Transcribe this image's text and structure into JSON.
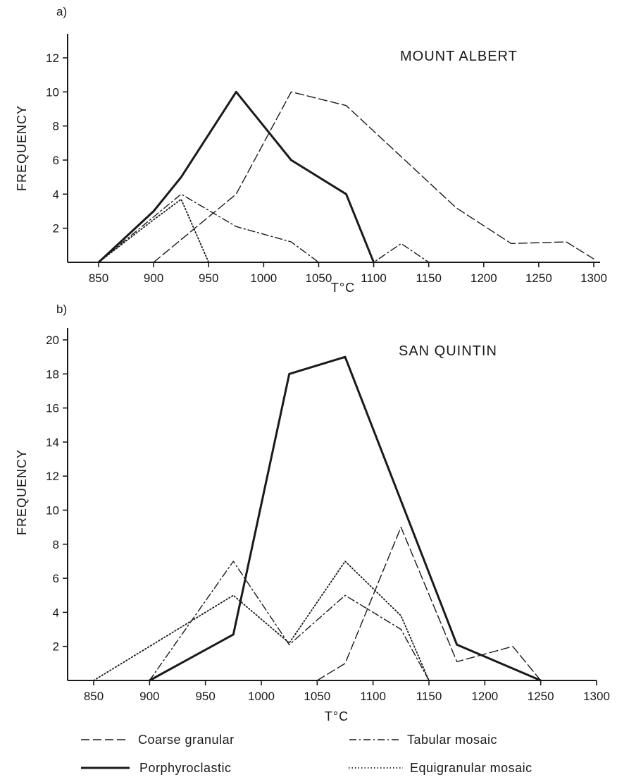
{
  "chart_data": [
    {
      "type": "line",
      "panel_label": "a)",
      "title": "MOUNT ALBERT",
      "xlabel": "T°C",
      "ylabel": "FREQUENCY",
      "xlim": [
        825,
        1300
      ],
      "ylim": [
        0,
        13
      ],
      "xticks": [
        850,
        900,
        950,
        1000,
        1050,
        1100,
        1150,
        1200,
        1250,
        1300
      ],
      "yticks": [
        2,
        4,
        6,
        8,
        10,
        12
      ],
      "grid": false,
      "series": [
        {
          "name": "Coarse granular",
          "style": "dashed",
          "points": [
            [
              900,
              0
            ],
            [
              975,
              4
            ],
            [
              1025,
              10
            ],
            [
              1075,
              9.2
            ],
            [
              1175,
              3.2
            ],
            [
              1225,
              1.1
            ],
            [
              1275,
              1.2
            ],
            [
              1300,
              0.2
            ]
          ]
        },
        {
          "name": "Porphyroclastic",
          "style": "solid",
          "points": [
            [
              850,
              0
            ],
            [
              900,
              3
            ],
            [
              925,
              5
            ],
            [
              975,
              10
            ],
            [
              1025,
              6
            ],
            [
              1075,
              4
            ],
            [
              1100,
              0
            ]
          ]
        },
        {
          "name": "Tabular mosaic",
          "style": "dashdot",
          "points": [
            [
              850,
              0
            ],
            [
              925,
              4
            ],
            [
              975,
              2.1
            ],
            [
              1025,
              1.2
            ],
            [
              1050,
              0
            ],
            [
              1100,
              0
            ],
            [
              1125,
              1.1
            ],
            [
              1150,
              0
            ]
          ]
        },
        {
          "name": "Equigranular mosaic",
          "style": "dotted",
          "points": [
            [
              850,
              0
            ],
            [
              900,
              2.5
            ],
            [
              925,
              3.7
            ],
            [
              950,
              0
            ]
          ]
        }
      ]
    },
    {
      "type": "line",
      "panel_label": "b)",
      "title": "SAN QUINTIN",
      "xlabel": "T°C",
      "ylabel": "FREQUENCY",
      "xlim": [
        825,
        1300
      ],
      "ylim": [
        0,
        21
      ],
      "xticks": [
        850,
        900,
        950,
        1000,
        1050,
        1100,
        1150,
        1200,
        1250,
        1300
      ],
      "yticks": [
        2,
        4,
        6,
        8,
        10,
        12,
        14,
        16,
        18,
        20
      ],
      "grid": false,
      "series": [
        {
          "name": "Coarse granular",
          "style": "dashed",
          "points": [
            [
              1050,
              0
            ],
            [
              1075,
              1
            ],
            [
              1125,
              9
            ],
            [
              1175,
              1.1
            ],
            [
              1225,
              2
            ],
            [
              1250,
              0
            ]
          ]
        },
        {
          "name": "Porphyroclastic",
          "style": "solid",
          "points": [
            [
              900,
              0
            ],
            [
              975,
              2.7
            ],
            [
              1025,
              18
            ],
            [
              1075,
              19
            ],
            [
              1175,
              2.1
            ],
            [
              1250,
              0
            ]
          ]
        },
        {
          "name": "Tabular mosaic",
          "style": "dashdot",
          "points": [
            [
              900,
              0
            ],
            [
              975,
              7
            ],
            [
              1025,
              2.1
            ],
            [
              1075,
              5
            ],
            [
              1125,
              3
            ],
            [
              1150,
              0
            ]
          ]
        },
        {
          "name": "Equigranular mosaic",
          "style": "dotted",
          "points": [
            [
              850,
              0
            ],
            [
              975,
              5
            ],
            [
              1025,
              2.2
            ],
            [
              1075,
              7
            ],
            [
              1125,
              3.8
            ],
            [
              1150,
              0
            ]
          ]
        }
      ]
    }
  ],
  "legend": {
    "placement": "bottom",
    "items": [
      {
        "label": "Coarse granular",
        "style": "dashed"
      },
      {
        "label": "Tabular mosaic",
        "style": "dashdot"
      },
      {
        "label": "Porphyroclastic",
        "style": "solid"
      },
      {
        "label": "Equigranular mosaic",
        "style": "dotted"
      }
    ]
  },
  "colors": {
    "ink": "#1a1a1a",
    "background": "#ffffff"
  }
}
